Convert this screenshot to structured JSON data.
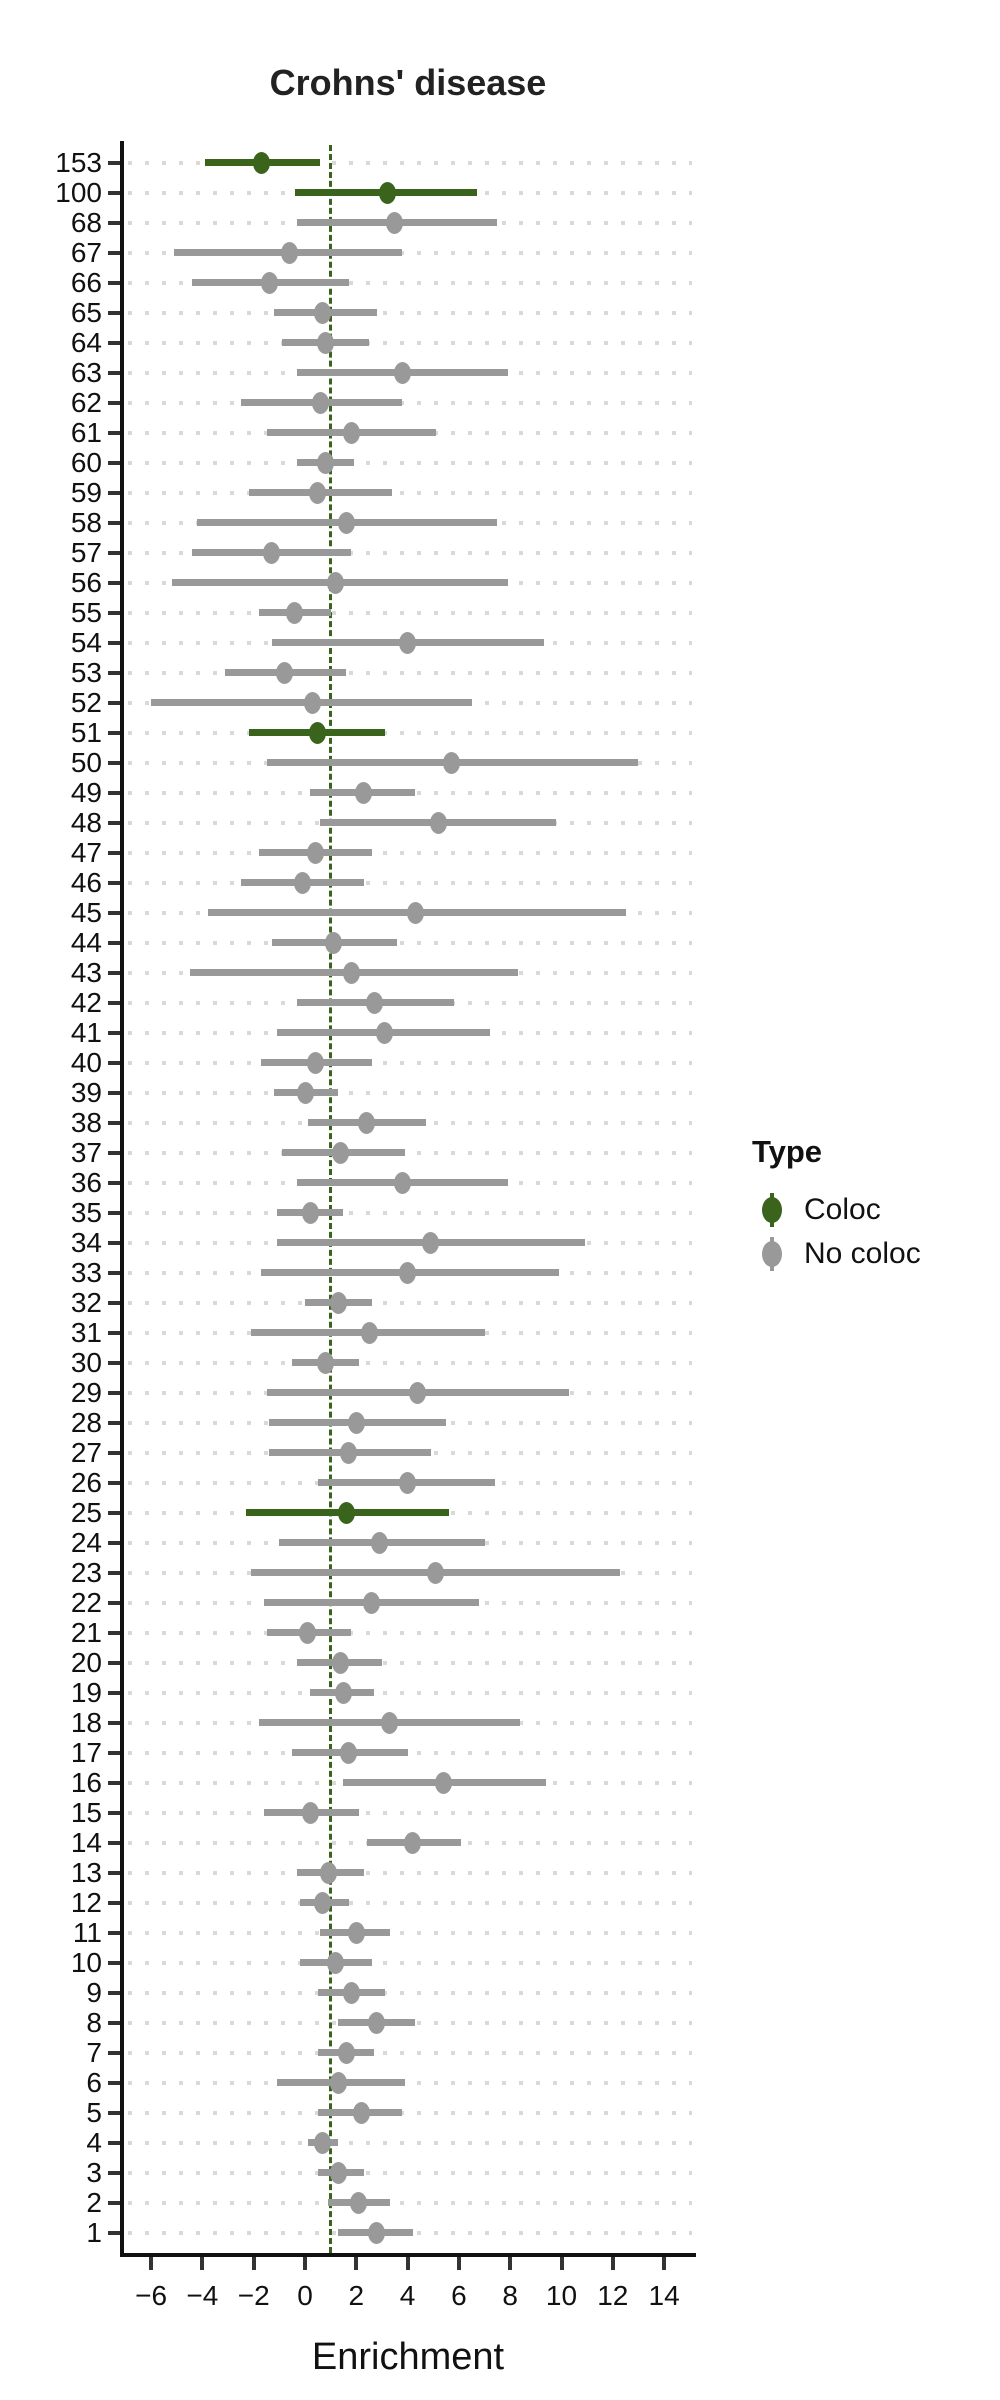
{
  "figure": {
    "title": "Crohns' disease",
    "x_axis_title": "Enrichment"
  },
  "legend": {
    "title": "Type",
    "entries": [
      {
        "label": "Coloc",
        "color": "#3a641c"
      },
      {
        "label": "No coloc",
        "color": "#999999"
      }
    ]
  },
  "colors": {
    "coloc": "#3a641c",
    "no_coloc": "#999999",
    "reference_line": "#3a641c",
    "gridline": "#d9d9d9",
    "axis": "#111111",
    "tick": "#333333"
  },
  "chart_data": {
    "type": "scatter",
    "subtype": "forest-plot-with-error-bars",
    "title": "Crohns' disease",
    "xlabel": "Enrichment",
    "ylabel": "",
    "xlim": [
      -7.1,
      15.1
    ],
    "grid": "dotted-horizontal",
    "legend_position": "right",
    "reference_line_x": 1,
    "x_ticks": [
      {
        "v": -6,
        "label": "−6"
      },
      {
        "v": -4,
        "label": "−4"
      },
      {
        "v": -2,
        "label": "−2"
      },
      {
        "v": 0,
        "label": "0"
      },
      {
        "v": 2,
        "label": "2"
      },
      {
        "v": 4,
        "label": "4"
      },
      {
        "v": 6,
        "label": "6"
      },
      {
        "v": 8,
        "label": "8"
      },
      {
        "v": 10,
        "label": "10"
      },
      {
        "v": 12,
        "label": "12"
      },
      {
        "v": 14,
        "label": "14"
      }
    ],
    "rows": [
      {
        "label": "153",
        "value": -1.7,
        "lo": -3.9,
        "hi": 0.6,
        "type": "Coloc"
      },
      {
        "label": "100",
        "value": 3.2,
        "lo": -0.4,
        "hi": 6.7,
        "type": "Coloc"
      },
      {
        "label": "68",
        "value": 3.5,
        "lo": -0.3,
        "hi": 7.5,
        "type": "No coloc"
      },
      {
        "label": "67",
        "value": -0.6,
        "lo": -5.1,
        "hi": 3.8,
        "type": "No coloc"
      },
      {
        "label": "66",
        "value": -1.4,
        "lo": -4.4,
        "hi": 1.7,
        "type": "No coloc"
      },
      {
        "label": "65",
        "value": 0.7,
        "lo": -1.2,
        "hi": 2.8,
        "type": "No coloc"
      },
      {
        "label": "64",
        "value": 0.8,
        "lo": -0.9,
        "hi": 2.5,
        "type": "No coloc"
      },
      {
        "label": "63",
        "value": 3.8,
        "lo": -0.3,
        "hi": 7.9,
        "type": "No coloc"
      },
      {
        "label": "62",
        "value": 0.6,
        "lo": -2.5,
        "hi": 3.8,
        "type": "No coloc"
      },
      {
        "label": "61",
        "value": 1.8,
        "lo": -1.5,
        "hi": 5.1,
        "type": "No coloc"
      },
      {
        "label": "60",
        "value": 0.8,
        "lo": -0.3,
        "hi": 1.9,
        "type": "No coloc"
      },
      {
        "label": "59",
        "value": 0.5,
        "lo": -2.2,
        "hi": 3.4,
        "type": "No coloc"
      },
      {
        "label": "58",
        "value": 1.6,
        "lo": -4.2,
        "hi": 7.5,
        "type": "No coloc"
      },
      {
        "label": "57",
        "value": -1.3,
        "lo": -4.4,
        "hi": 1.8,
        "type": "No coloc"
      },
      {
        "label": "56",
        "value": 1.2,
        "lo": -5.2,
        "hi": 7.9,
        "type": "No coloc"
      },
      {
        "label": "55",
        "value": -0.4,
        "lo": -1.8,
        "hi": 1.0,
        "type": "No coloc"
      },
      {
        "label": "54",
        "value": 4.0,
        "lo": -1.3,
        "hi": 9.3,
        "type": "No coloc"
      },
      {
        "label": "53",
        "value": -0.8,
        "lo": -3.1,
        "hi": 1.6,
        "type": "No coloc"
      },
      {
        "label": "52",
        "value": 0.3,
        "lo": -6.0,
        "hi": 6.5,
        "type": "No coloc"
      },
      {
        "label": "51",
        "value": 0.5,
        "lo": -2.2,
        "hi": 3.1,
        "type": "Coloc"
      },
      {
        "label": "50",
        "value": 5.7,
        "lo": -1.5,
        "hi": 13.0,
        "type": "No coloc"
      },
      {
        "label": "49",
        "value": 2.3,
        "lo": 0.2,
        "hi": 4.3,
        "type": "No coloc"
      },
      {
        "label": "48",
        "value": 5.2,
        "lo": 0.6,
        "hi": 9.8,
        "type": "No coloc"
      },
      {
        "label": "47",
        "value": 0.4,
        "lo": -1.8,
        "hi": 2.6,
        "type": "No coloc"
      },
      {
        "label": "46",
        "value": -0.1,
        "lo": -2.5,
        "hi": 2.3,
        "type": "No coloc"
      },
      {
        "label": "45",
        "value": 4.3,
        "lo": -3.8,
        "hi": 12.5,
        "type": "No coloc"
      },
      {
        "label": "44",
        "value": 1.1,
        "lo": -1.3,
        "hi": 3.6,
        "type": "No coloc"
      },
      {
        "label": "43",
        "value": 1.8,
        "lo": -4.5,
        "hi": 8.3,
        "type": "No coloc"
      },
      {
        "label": "42",
        "value": 2.7,
        "lo": -0.3,
        "hi": 5.8,
        "type": "No coloc"
      },
      {
        "label": "41",
        "value": 3.1,
        "lo": -1.1,
        "hi": 7.2,
        "type": "No coloc"
      },
      {
        "label": "40",
        "value": 0.4,
        "lo": -1.7,
        "hi": 2.6,
        "type": "No coloc"
      },
      {
        "label": "39",
        "value": 0.0,
        "lo": -1.2,
        "hi": 1.3,
        "type": "No coloc"
      },
      {
        "label": "38",
        "value": 2.4,
        "lo": 0.1,
        "hi": 4.7,
        "type": "No coloc"
      },
      {
        "label": "37",
        "value": 1.4,
        "lo": -0.9,
        "hi": 3.9,
        "type": "No coloc"
      },
      {
        "label": "36",
        "value": 3.8,
        "lo": -0.3,
        "hi": 7.9,
        "type": "No coloc"
      },
      {
        "label": "35",
        "value": 0.2,
        "lo": -1.1,
        "hi": 1.5,
        "type": "No coloc"
      },
      {
        "label": "34",
        "value": 4.9,
        "lo": -1.1,
        "hi": 10.9,
        "type": "No coloc"
      },
      {
        "label": "33",
        "value": 4.0,
        "lo": -1.7,
        "hi": 9.9,
        "type": "No coloc"
      },
      {
        "label": "32",
        "value": 1.3,
        "lo": 0.0,
        "hi": 2.6,
        "type": "No coloc"
      },
      {
        "label": "31",
        "value": 2.5,
        "lo": -2.1,
        "hi": 7.0,
        "type": "No coloc"
      },
      {
        "label": "30",
        "value": 0.8,
        "lo": -0.5,
        "hi": 2.1,
        "type": "No coloc"
      },
      {
        "label": "29",
        "value": 4.4,
        "lo": -1.5,
        "hi": 10.3,
        "type": "No coloc"
      },
      {
        "label": "28",
        "value": 2.0,
        "lo": -1.4,
        "hi": 5.5,
        "type": "No coloc"
      },
      {
        "label": "27",
        "value": 1.7,
        "lo": -1.4,
        "hi": 4.9,
        "type": "No coloc"
      },
      {
        "label": "26",
        "value": 4.0,
        "lo": 0.5,
        "hi": 7.4,
        "type": "No coloc"
      },
      {
        "label": "25",
        "value": 1.6,
        "lo": -2.3,
        "hi": 5.6,
        "type": "Coloc"
      },
      {
        "label": "24",
        "value": 2.9,
        "lo": -1.0,
        "hi": 7.0,
        "type": "No coloc"
      },
      {
        "label": "23",
        "value": 5.1,
        "lo": -2.1,
        "hi": 12.3,
        "type": "No coloc"
      },
      {
        "label": "22",
        "value": 2.6,
        "lo": -1.6,
        "hi": 6.8,
        "type": "No coloc"
      },
      {
        "label": "21",
        "value": 0.1,
        "lo": -1.5,
        "hi": 1.8,
        "type": "No coloc"
      },
      {
        "label": "20",
        "value": 1.4,
        "lo": -0.3,
        "hi": 3.0,
        "type": "No coloc"
      },
      {
        "label": "19",
        "value": 1.5,
        "lo": 0.2,
        "hi": 2.7,
        "type": "No coloc"
      },
      {
        "label": "18",
        "value": 3.3,
        "lo": -1.8,
        "hi": 8.4,
        "type": "No coloc"
      },
      {
        "label": "17",
        "value": 1.7,
        "lo": -0.5,
        "hi": 4.0,
        "type": "No coloc"
      },
      {
        "label": "16",
        "value": 5.4,
        "lo": 1.5,
        "hi": 9.4,
        "type": "No coloc"
      },
      {
        "label": "15",
        "value": 0.2,
        "lo": -1.6,
        "hi": 2.1,
        "type": "No coloc"
      },
      {
        "label": "14",
        "value": 4.2,
        "lo": 2.4,
        "hi": 6.1,
        "type": "No coloc"
      },
      {
        "label": "13",
        "value": 0.9,
        "lo": -0.3,
        "hi": 2.3,
        "type": "No coloc"
      },
      {
        "label": "12",
        "value": 0.7,
        "lo": -0.2,
        "hi": 1.7,
        "type": "No coloc"
      },
      {
        "label": "11",
        "value": 2.0,
        "lo": 0.6,
        "hi": 3.3,
        "type": "No coloc"
      },
      {
        "label": "10",
        "value": 1.2,
        "lo": -0.2,
        "hi": 2.6,
        "type": "No coloc"
      },
      {
        "label": "9",
        "value": 1.8,
        "lo": 0.5,
        "hi": 3.1,
        "type": "No coloc"
      },
      {
        "label": "8",
        "value": 2.8,
        "lo": 1.3,
        "hi": 4.3,
        "type": "No coloc"
      },
      {
        "label": "7",
        "value": 1.6,
        "lo": 0.5,
        "hi": 2.7,
        "type": "No coloc"
      },
      {
        "label": "6",
        "value": 1.3,
        "lo": -1.1,
        "hi": 3.9,
        "type": "No coloc"
      },
      {
        "label": "5",
        "value": 2.2,
        "lo": 0.5,
        "hi": 3.8,
        "type": "No coloc"
      },
      {
        "label": "4",
        "value": 0.7,
        "lo": 0.1,
        "hi": 1.3,
        "type": "No coloc"
      },
      {
        "label": "3",
        "value": 1.3,
        "lo": 0.5,
        "hi": 2.3,
        "type": "No coloc"
      },
      {
        "label": "2",
        "value": 2.1,
        "lo": 0.9,
        "hi": 3.3,
        "type": "No coloc"
      },
      {
        "label": "1",
        "value": 2.8,
        "lo": 1.3,
        "hi": 4.2,
        "type": "No coloc"
      }
    ]
  }
}
